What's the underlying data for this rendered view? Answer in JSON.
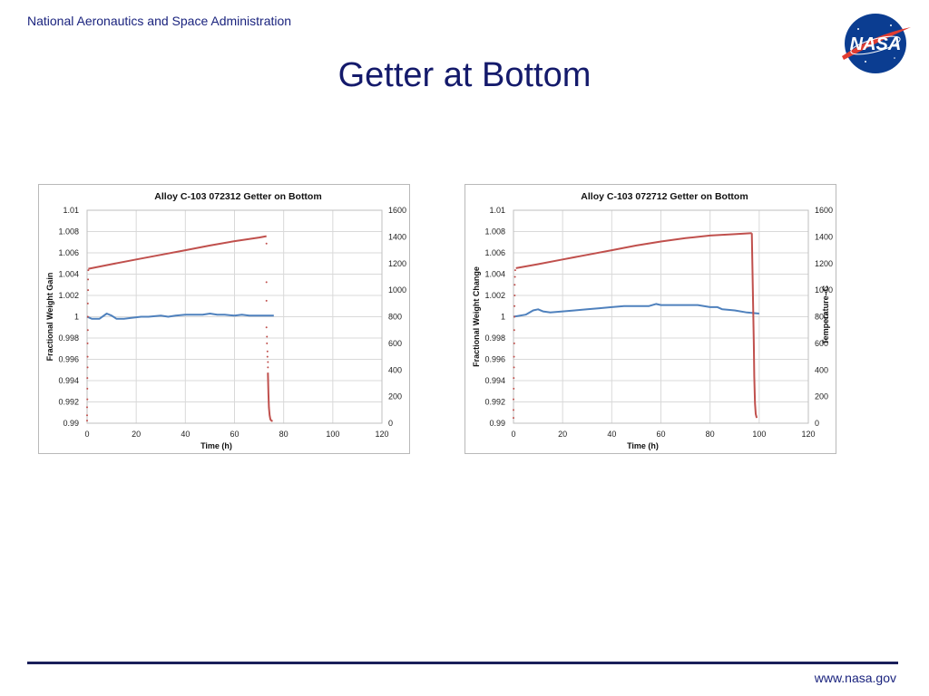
{
  "header": {
    "org_name": "National Aeronautics and Space Administration",
    "title": "Getter at Bottom",
    "logo_text": "NASA"
  },
  "footer": {
    "url": "www.nasa.gov"
  },
  "colors": {
    "weight_series": "#4f81bd",
    "temperature_series": "#c0504d",
    "title_text": "#141a6b",
    "header_text": "#1a237e"
  },
  "chart_data": [
    {
      "type": "line",
      "title": "Alloy C-103 072312  Getter on Bottom",
      "xlabel": "Time (h)",
      "ylabel": "Fractional Weight Gain",
      "y2label": "",
      "xlim": [
        0,
        120
      ],
      "ylim": [
        0.99,
        1.01
      ],
      "y2lim": [
        0,
        1600
      ],
      "x_ticks": [
        0,
        20,
        40,
        60,
        80,
        100,
        120
      ],
      "y_ticks": [
        "0.99",
        "0.992",
        "0.994",
        "0.996",
        "0.998",
        "1",
        "1.002",
        "1.004",
        "1.006",
        "1.008",
        "1.01"
      ],
      "y2_ticks": [
        0,
        200,
        400,
        600,
        800,
        1000,
        1200,
        1400,
        1600
      ],
      "grid": true,
      "series": [
        {
          "axis": "left",
          "color": "#4f81bd",
          "style": "line",
          "x": [
            0,
            2,
            5,
            8,
            10,
            12,
            15,
            18,
            22,
            25,
            30,
            33,
            36,
            40,
            43,
            47,
            50,
            53,
            56,
            60,
            63,
            66,
            70,
            73,
            76
          ],
          "y": [
            1.0,
            0.9998,
            0.9998,
            1.0003,
            1.0001,
            0.9998,
            0.9998,
            0.9999,
            1.0,
            1.0,
            1.0001,
            1.0,
            1.0001,
            1.0002,
            1.0002,
            1.0002,
            1.0003,
            1.0002,
            1.0002,
            1.0001,
            1.0002,
            1.0001,
            1.0001,
            1.0001,
            1.0001
          ]
        },
        {
          "axis": "right",
          "color": "#c0504d",
          "style": "line",
          "x": [
            0.5,
            10,
            20,
            30,
            40,
            50,
            60,
            70,
            73
          ],
          "y": [
            1160,
            1195,
            1230,
            1265,
            1300,
            1335,
            1368,
            1395,
            1405
          ]
        },
        {
          "axis": "right",
          "color": "#c0504d",
          "style": "points",
          "x": [
            0,
            0,
            0,
            0.1,
            0.1,
            0.1,
            0.2,
            0.2,
            0.2,
            0.3,
            0.3,
            0.3,
            0.4,
            0.4,
            0.5
          ],
          "y": [
            20,
            60,
            120,
            180,
            260,
            340,
            420,
            500,
            600,
            700,
            800,
            900,
            1000,
            1080,
            1150
          ]
        },
        {
          "axis": "right",
          "color": "#c0504d",
          "style": "points",
          "x": [
            73,
            73,
            73,
            73,
            73.2,
            73.2,
            73.4,
            73.4,
            73.6,
            73.6
          ],
          "y": [
            1350,
            1060,
            920,
            720,
            650,
            600,
            540,
            500,
            460,
            420
          ]
        },
        {
          "axis": "right",
          "color": "#c0504d",
          "style": "line",
          "x": [
            73.6,
            73.8,
            74,
            74.3,
            74.6,
            75,
            75.5
          ],
          "y": [
            380,
            220,
            120,
            60,
            30,
            20,
            15
          ]
        }
      ]
    },
    {
      "type": "line",
      "title": "Alloy C-103 072712  Getter on Bottom",
      "xlabel": "Time (h)",
      "ylabel": "Fractional Weight Change",
      "y2label": "Temperature–C",
      "xlim": [
        0,
        120
      ],
      "ylim": [
        0.99,
        1.01
      ],
      "y2lim": [
        0,
        1600
      ],
      "x_ticks": [
        0,
        20,
        40,
        60,
        80,
        100,
        120
      ],
      "y_ticks": [
        "0.99",
        "0.992",
        "0.994",
        "0.996",
        "0.998",
        "1",
        "1.002",
        "1.004",
        "1.006",
        "1.008",
        "1.01"
      ],
      "y2_ticks": [
        0,
        200,
        400,
        600,
        800,
        1000,
        1200,
        1400,
        1600
      ],
      "grid": true,
      "series": [
        {
          "axis": "left",
          "color": "#4f81bd",
          "style": "line",
          "x": [
            0,
            5,
            8,
            10,
            12,
            15,
            20,
            25,
            30,
            35,
            40,
            45,
            50,
            55,
            58,
            60,
            65,
            70,
            75,
            80,
            83,
            85,
            90,
            95,
            100
          ],
          "y": [
            1.0,
            1.0002,
            1.0006,
            1.0007,
            1.0005,
            1.0004,
            1.0005,
            1.0006,
            1.0007,
            1.0008,
            1.0009,
            1.001,
            1.001,
            1.001,
            1.0012,
            1.0011,
            1.0011,
            1.0011,
            1.0011,
            1.0009,
            1.0009,
            1.0007,
            1.0006,
            1.0004,
            1.0003
          ]
        },
        {
          "axis": "right",
          "color": "#c0504d",
          "style": "line",
          "x": [
            1,
            10,
            20,
            30,
            40,
            50,
            60,
            70,
            80,
            90,
            97
          ],
          "y": [
            1165,
            1195,
            1230,
            1265,
            1300,
            1335,
            1365,
            1390,
            1410,
            1420,
            1428
          ]
        },
        {
          "axis": "right",
          "color": "#c0504d",
          "style": "points",
          "x": [
            0,
            0,
            0,
            0.1,
            0.1,
            0.2,
            0.2,
            0.3,
            0.3,
            0.4,
            0.4,
            0.5,
            0.5,
            0.6,
            0.7
          ],
          "y": [
            40,
            100,
            180,
            260,
            340,
            420,
            500,
            600,
            700,
            800,
            880,
            960,
            1040,
            1100,
            1150
          ]
        },
        {
          "axis": "right",
          "color": "#c0504d",
          "style": "line",
          "x": [
            97,
            97.2,
            97.5,
            97.8,
            98,
            98.3,
            98.6,
            99
          ],
          "y": [
            1428,
            1200,
            900,
            600,
            350,
            150,
            70,
            40
          ]
        }
      ]
    }
  ]
}
